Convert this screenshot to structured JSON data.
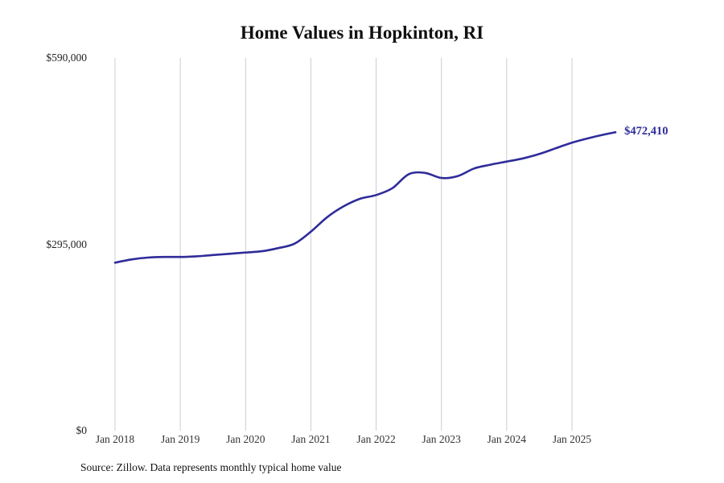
{
  "chart_data": {
    "type": "line",
    "title": "Home Values in Hopkinton, RI",
    "source": "Source: Zillow. Data represents monthly typical home value",
    "end_label": "$472,410",
    "line_color": "#2f2c9a",
    "gridline_color": "#cccccc",
    "y_max": 590000,
    "y_ticks": [
      {
        "label": "$0",
        "value": 0
      },
      {
        "label": "$295,000",
        "value": 295000
      },
      {
        "label": "$590,000",
        "value": 590000
      }
    ],
    "x_ticks": [
      "Jan 2018",
      "Jan 2019",
      "Jan 2020",
      "Jan 2021",
      "Jan 2022",
      "Jan 2023",
      "Jan 2024",
      "Jan 2025"
    ],
    "points": [
      {
        "date": "Jan 2018",
        "value": 266000
      },
      {
        "date": "Apr 2018",
        "value": 271000
      },
      {
        "date": "Jul 2018",
        "value": 274000
      },
      {
        "date": "Oct 2018",
        "value": 275000
      },
      {
        "date": "Jan 2019",
        "value": 275000
      },
      {
        "date": "Apr 2019",
        "value": 276000
      },
      {
        "date": "Jul 2019",
        "value": 278000
      },
      {
        "date": "Oct 2019",
        "value": 280000
      },
      {
        "date": "Jan 2020",
        "value": 282000
      },
      {
        "date": "Apr 2020",
        "value": 284000
      },
      {
        "date": "Jul 2020",
        "value": 289000
      },
      {
        "date": "Oct 2020",
        "value": 296000
      },
      {
        "date": "Jan 2021",
        "value": 315000
      },
      {
        "date": "Apr 2021",
        "value": 338000
      },
      {
        "date": "Jul 2021",
        "value": 355000
      },
      {
        "date": "Oct 2021",
        "value": 367000
      },
      {
        "date": "Jan 2022",
        "value": 373000
      },
      {
        "date": "Apr 2022",
        "value": 384000
      },
      {
        "date": "Jul 2022",
        "value": 406000
      },
      {
        "date": "Oct 2022",
        "value": 408000
      },
      {
        "date": "Jan 2023",
        "value": 400000
      },
      {
        "date": "Apr 2023",
        "value": 403000
      },
      {
        "date": "Jul 2023",
        "value": 415000
      },
      {
        "date": "Oct 2023",
        "value": 421000
      },
      {
        "date": "Jan 2024",
        "value": 426000
      },
      {
        "date": "Apr 2024",
        "value": 431000
      },
      {
        "date": "Jul 2024",
        "value": 438000
      },
      {
        "date": "Oct 2024",
        "value": 447000
      },
      {
        "date": "Jan 2025",
        "value": 456000
      },
      {
        "date": "Apr 2025",
        "value": 463000
      },
      {
        "date": "Jul 2025",
        "value": 469000
      },
      {
        "date": "Sep 2025",
        "value": 472410
      }
    ]
  }
}
